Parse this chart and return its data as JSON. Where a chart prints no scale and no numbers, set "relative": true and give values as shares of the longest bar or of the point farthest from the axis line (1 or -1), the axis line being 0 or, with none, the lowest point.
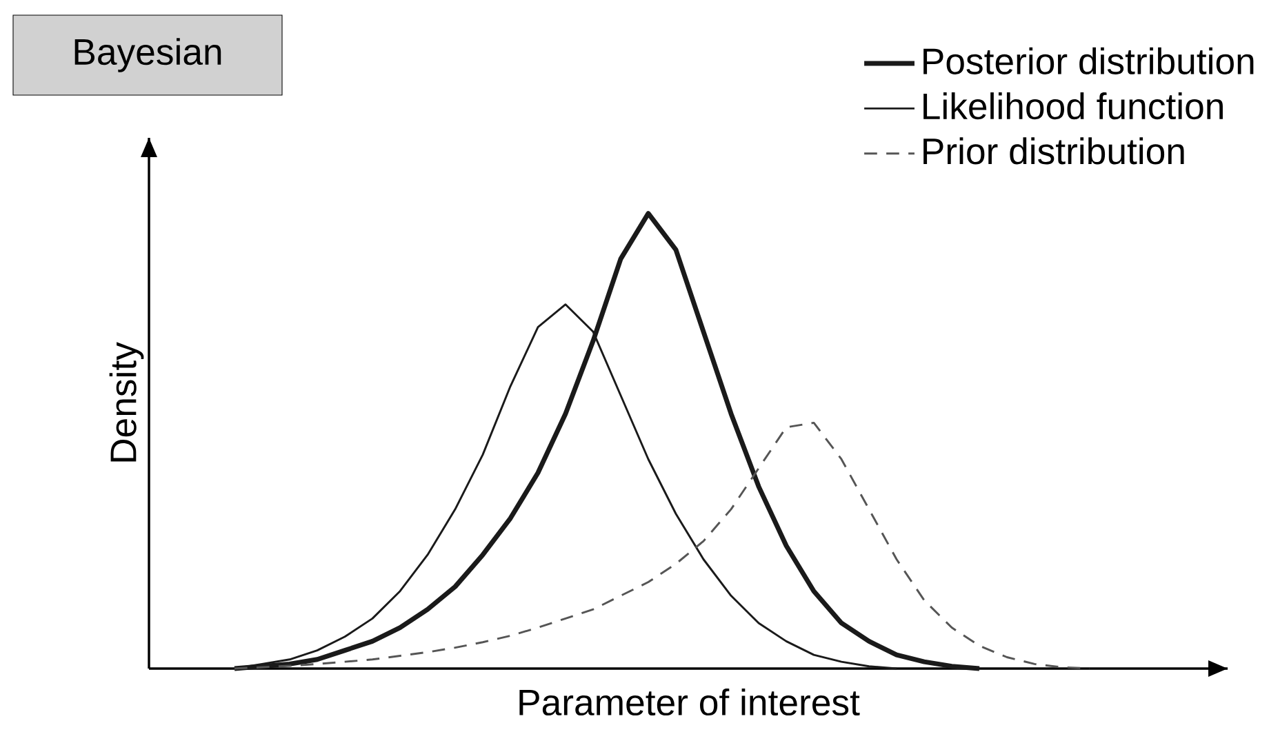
{
  "chart_data": {
    "type": "line",
    "title": "Bayesian",
    "xlabel": "Parameter of interest",
    "ylabel": "Density",
    "relative": true,
    "legend": "top right",
    "marker": "none",
    "categories": [
      null,
      null,
      null,
      null,
      null,
      null,
      null,
      null,
      null,
      null,
      null,
      null,
      null,
      null,
      null,
      null,
      null,
      null,
      null,
      null,
      null,
      null,
      null,
      null,
      null,
      null,
      null,
      null,
      null,
      null,
      null,
      null
    ],
    "series": [
      {
        "name": "Posterior distribution",
        "color": "#1a1a1a",
        "line_style": "solid",
        "values": [
          0,
          0.005,
          0.01,
          0.02,
          0.04,
          0.06,
          0.09,
          0.13,
          0.18,
          0.25,
          0.33,
          0.43,
          0.56,
          0.72,
          0.9,
          1.0,
          0.92,
          0.74,
          0.56,
          0.4,
          0.27,
          0.17,
          0.1,
          0.06,
          0.03,
          0.015,
          0.005,
          0,
          null,
          null,
          null,
          null
        ]
      },
      {
        "name": "Likelihood function",
        "color": "#1a1a1a",
        "line_style": "solid",
        "values": [
          0,
          0.01,
          0.02,
          0.04,
          0.07,
          0.11,
          0.17,
          0.25,
          0.35,
          0.47,
          0.62,
          0.75,
          0.8,
          0.74,
          0.6,
          0.46,
          0.34,
          0.24,
          0.16,
          0.1,
          0.06,
          0.03,
          0.015,
          0.005,
          0,
          null,
          null,
          null,
          null,
          null,
          null,
          null
        ]
      },
      {
        "name": "Prior distribution",
        "color": "#555555",
        "line_style": "dashed",
        "values": [
          0,
          0.003,
          0.006,
          0.01,
          0.015,
          0.02,
          0.028,
          0.036,
          0.046,
          0.058,
          0.072,
          0.09,
          0.11,
          0.13,
          0.16,
          0.19,
          0.23,
          0.28,
          0.35,
          0.44,
          0.53,
          0.54,
          0.46,
          0.35,
          0.24,
          0.15,
          0.09,
          0.05,
          0.025,
          0.01,
          0.003,
          0
        ]
      }
    ]
  }
}
